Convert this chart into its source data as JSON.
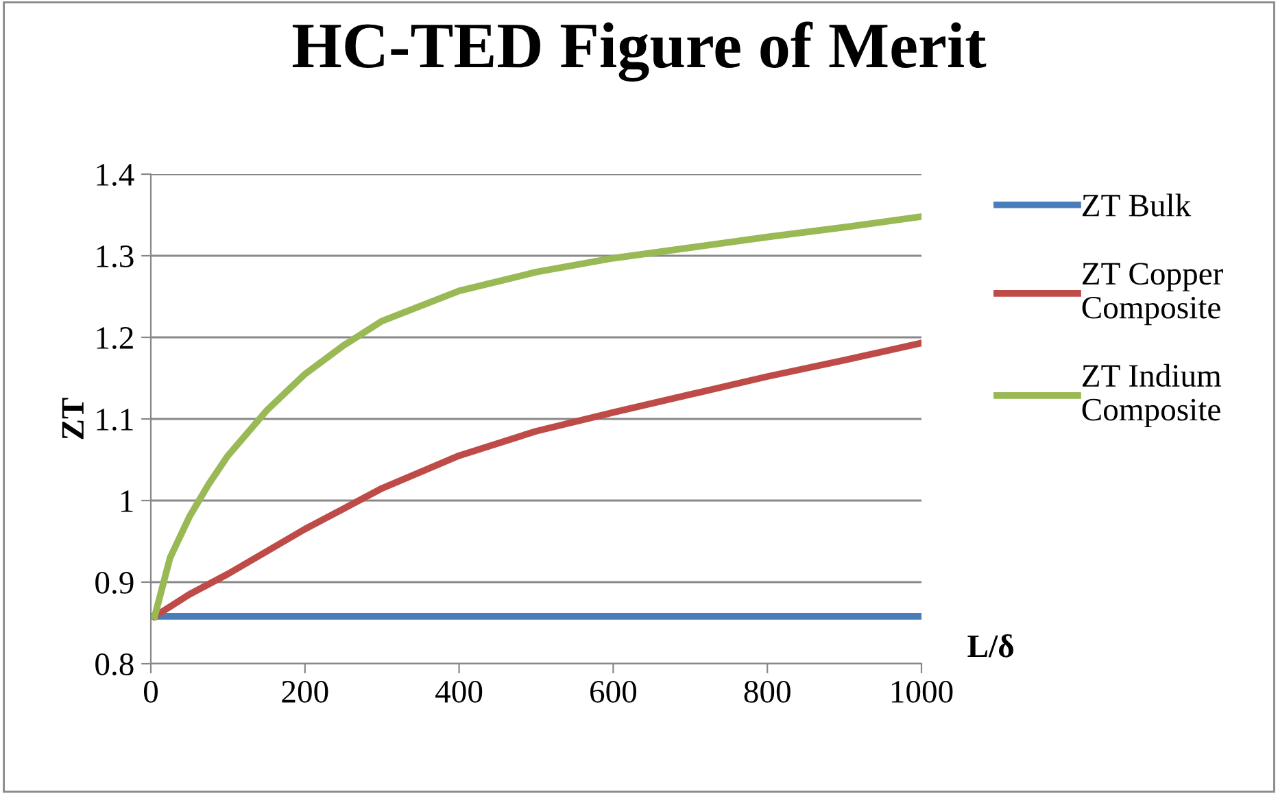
{
  "chart_data": {
    "type": "line",
    "title": "HC-TED Figure of Merit",
    "xlabel": "L/δ",
    "ylabel": "ZT",
    "xlim": [
      0,
      1000
    ],
    "xticks": [
      0,
      200,
      400,
      600,
      800,
      1000
    ],
    "ylim": [
      0.8,
      1.4
    ],
    "yticks": [
      0.8,
      0.9,
      1,
      1.1,
      1.2,
      1.3,
      1.4
    ],
    "grid": "y",
    "legend": "right",
    "marker": "none",
    "line_style": "solid",
    "series": [
      {
        "name": "ZT Bulk",
        "color": "#4a7ebb",
        "x": [
          5,
          1000
        ],
        "values": [
          0.858,
          0.858
        ]
      },
      {
        "name": "ZT Copper Composite",
        "color": "#be4b48",
        "x": [
          5,
          50,
          100,
          200,
          300,
          400,
          500,
          600,
          700,
          800,
          900,
          1000
        ],
        "values": [
          0.858,
          0.885,
          0.91,
          0.965,
          1.015,
          1.055,
          1.085,
          1.108,
          1.13,
          1.152,
          1.172,
          1.193
        ]
      },
      {
        "name": "ZT Indium Composite",
        "color": "#98b954",
        "x": [
          5,
          25,
          50,
          75,
          100,
          150,
          200,
          250,
          300,
          400,
          500,
          600,
          700,
          800,
          900,
          1000
        ],
        "values": [
          0.858,
          0.93,
          0.98,
          1.02,
          1.055,
          1.11,
          1.155,
          1.19,
          1.22,
          1.257,
          1.28,
          1.297,
          1.31,
          1.323,
          1.335,
          1.348
        ]
      }
    ]
  }
}
